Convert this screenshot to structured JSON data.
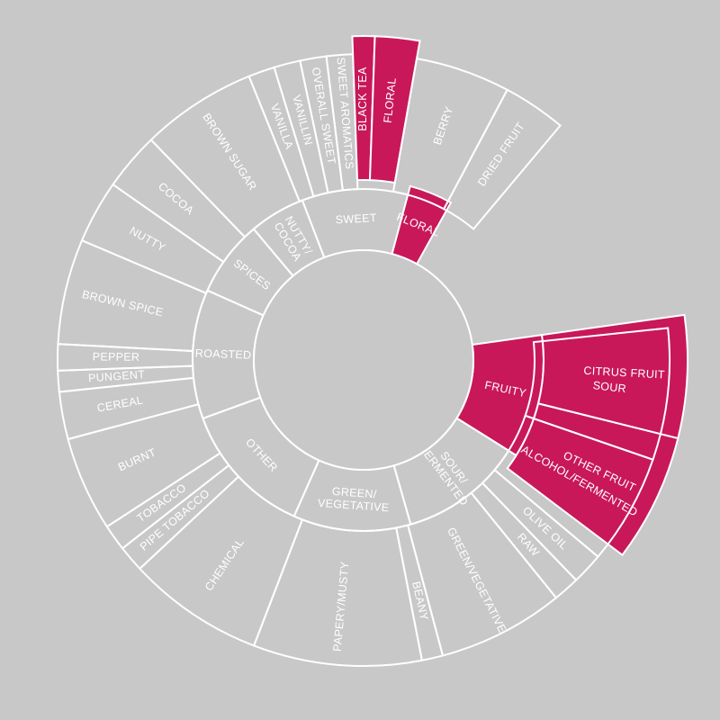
{
  "colors": {
    "background": "#c8c8c8",
    "highlight": "#c8185a",
    "line": "#ffffff",
    "text": "#ffffff"
  },
  "wheel": {
    "inner": [
      {
        "label": "FRUITY",
        "start": 0,
        "end": 40,
        "highlight": true,
        "rotate_text": true
      },
      {
        "label": "SOUR/\nFERMENTED",
        "start": 40,
        "end": 82,
        "highlight": false,
        "rotate_text": true
      },
      {
        "label": "GREEN/\nVEGETATIVE",
        "start": 82,
        "end": 122,
        "highlight": false,
        "rotate_text": false
      },
      {
        "label": "OTHER",
        "start": 122,
        "end": 168,
        "highlight": false,
        "rotate_text": false
      },
      {
        "label": "ROASTED",
        "start": 168,
        "end": 212,
        "highlight": false,
        "rotate_text": true
      },
      {
        "label": "SPICES",
        "start": 212,
        "end": 238,
        "highlight": false,
        "rotate_text": true
      },
      {
        "label": "NUTTY/\nCOCOA",
        "start": 238,
        "end": 257,
        "highlight": false,
        "rotate_text": true
      },
      {
        "label": "SWEET",
        "start": 257,
        "end": 293,
        "highlight": false,
        "rotate_text": false
      },
      {
        "label": "FLORAL",
        "start": 293,
        "end": 307,
        "highlight": true,
        "rotate_text": false
      }
    ],
    "outer": [
      {
        "label": "CITRUS FRUIT",
        "start": 0,
        "end": 22,
        "highlight": true,
        "rotate_text": true
      },
      {
        "label": "OTHER FRUIT",
        "start": 22,
        "end": 45,
        "highlight": true,
        "rotate_text": true
      },
      {
        "label": "SOUR",
        "start": 2,
        "end": 27,
        "highlight": false,
        "rotate_text": true
      },
      {
        "label": "ALCOHOL/FERMENTED",
        "start": 27,
        "end": 48,
        "highlight": false,
        "rotate_text": true
      },
      {
        "label": "OLIVE OIL",
        "start": 48,
        "end": 54,
        "highlight": false,
        "rotate_text": true
      },
      {
        "label": "RAW",
        "start": 54,
        "end": 59,
        "highlight": false,
        "rotate_text": true
      },
      {
        "label": "GREEN/VEGETATIVE",
        "start": 59,
        "end": 83,
        "highlight": false,
        "rotate_text": true
      },
      {
        "label": "BEANY",
        "start": 83,
        "end": 87,
        "highlight": false,
        "rotate_text": true
      },
      {
        "label": "PAPERY/MUSTY",
        "start": 87,
        "end": 119,
        "highlight": false,
        "rotate_text": true
      },
      {
        "label": "CHEMICAL",
        "start": 119,
        "end": 145,
        "highlight": false,
        "rotate_text": true
      },
      {
        "label": "PIPE TOBACCO",
        "start": 145,
        "end": 150,
        "highlight": false,
        "rotate_text": true
      },
      {
        "label": "TOBACCO",
        "start": 150,
        "end": 155,
        "highlight": false,
        "rotate_text": true
      },
      {
        "label": "BURNT",
        "start": 155,
        "end": 173,
        "highlight": false,
        "rotate_text": true
      },
      {
        "label": "CEREAL",
        "start": 173,
        "end": 182,
        "highlight": false,
        "rotate_text": true
      },
      {
        "label": "PUNGENT",
        "start": 182,
        "end": 186,
        "highlight": false,
        "rotate_text": true
      },
      {
        "label": "PEPPER",
        "start": 186,
        "end": 191,
        "highlight": false,
        "rotate_text": true
      },
      {
        "label": "BROWN SPICE",
        "start": 191,
        "end": 211,
        "highlight": false,
        "rotate_text": true
      },
      {
        "label": "NUTTY",
        "start": 211,
        "end": 223,
        "highlight": false,
        "rotate_text": true
      },
      {
        "label": "COCOA",
        "start": 223,
        "end": 234,
        "highlight": false,
        "rotate_text": true
      },
      {
        "label": "BROWN SUGAR",
        "start": 234,
        "end": 256,
        "highlight": false,
        "rotate_text": true
      },
      {
        "label": "VANILLA",
        "start": 256,
        "end": 261,
        "highlight": false,
        "rotate_text": true
      },
      {
        "label": "VANILLIN",
        "start": 261,
        "end": 266,
        "highlight": false,
        "rotate_text": true
      },
      {
        "label": "OVERALL SWEET",
        "start": 266,
        "end": 271,
        "highlight": false,
        "rotate_text": true
      },
      {
        "label": "SWEET AROMATICS",
        "start": 271,
        "end": 276,
        "highlight": false,
        "rotate_text": true
      },
      {
        "label": "BLACK TEA",
        "start": 276,
        "end": 280,
        "highlight": true,
        "rotate_text": true
      },
      {
        "label": "FLORAL",
        "start": 280,
        "end": 288,
        "highlight": true,
        "rotate_text": true
      },
      {
        "label": "BERRY",
        "start": 288,
        "end": 306,
        "highlight": false,
        "rotate_text": true
      },
      {
        "label": "DRIED FRUIT",
        "start": 306,
        "end": 318,
        "highlight": false,
        "rotate_text": true
      }
    ]
  }
}
